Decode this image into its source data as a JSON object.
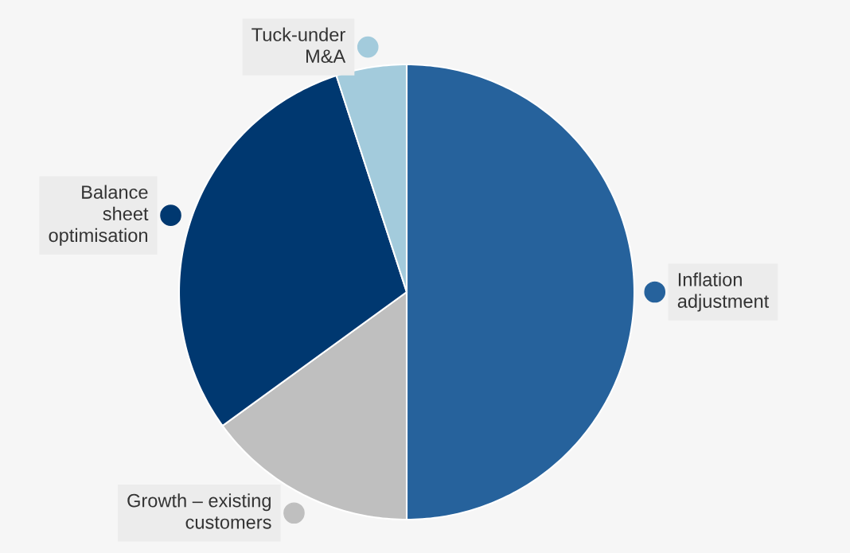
{
  "chart_data": {
    "type": "pie",
    "categories": [
      "Inflation\nadjustment",
      "Growth – existing\ncustomers",
      "Balance\nsheet\noptimisation",
      "Tuck-under\nM&A"
    ],
    "values": [
      50,
      15,
      30,
      5
    ],
    "colors": [
      "#26629c",
      "#bfbfbf",
      "#003870",
      "#a3cbdc"
    ],
    "legend": "left"
  }
}
